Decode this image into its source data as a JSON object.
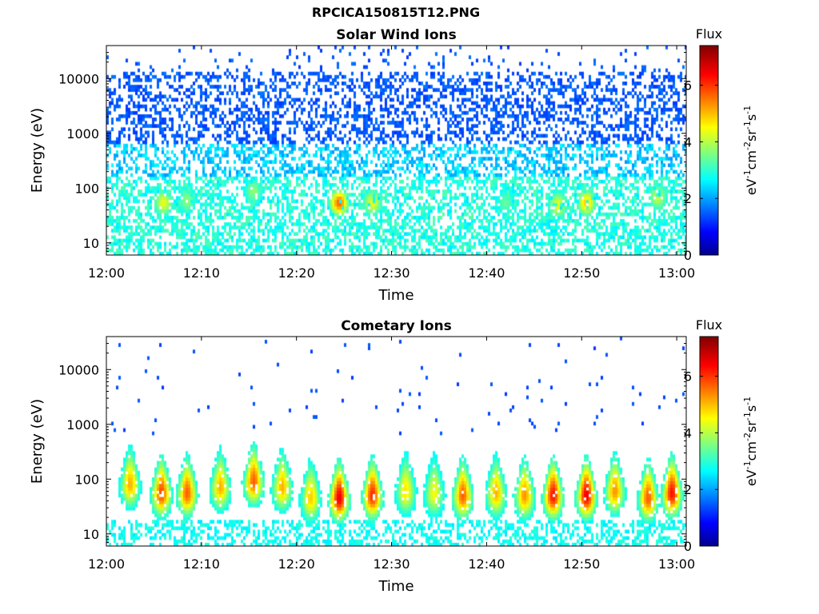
{
  "page_title": "RPCICA150815T12.PNG",
  "chart_data": [
    {
      "type": "heatmap",
      "title": "Solar Wind Ions",
      "xlabel": "Time",
      "ylabel": "Energy (eV)",
      "x_ticks": [
        "12:00",
        "12:10",
        "12:20",
        "12:30",
        "12:40",
        "12:50",
        "13:00"
      ],
      "x_tick_minutes": [
        0,
        10,
        20,
        30,
        40,
        50,
        60
      ],
      "xlim_minutes": [
        0,
        61
      ],
      "y_scale": "log",
      "y_ticks": [
        10,
        100,
        1000,
        10000
      ],
      "y_tick_labels": [
        "10",
        "100",
        "1000",
        "10000"
      ],
      "ylim": [
        6,
        40000
      ],
      "colorbar": {
        "label": "Flux",
        "units_base": "eV",
        "units_parts": [
          "-1",
          "cm",
          "-2",
          "sr",
          "-1",
          "s",
          "-1"
        ],
        "ticks": [
          "0",
          "2",
          "4",
          "6"
        ],
        "range": [
          0,
          7.4
        ]
      },
      "background_level": 2.2,
      "hotspots": [
        {
          "t": 6,
          "energy": 55,
          "level": 4.5
        },
        {
          "t": 8.5,
          "energy": 60,
          "level": 3.8
        },
        {
          "t": 15.5,
          "energy": 90,
          "level": 3.8
        },
        {
          "t": 24.5,
          "energy": 55,
          "level": 5.8
        },
        {
          "t": 28,
          "energy": 55,
          "level": 4.5
        },
        {
          "t": 42,
          "energy": 55,
          "level": 3.5
        },
        {
          "t": 47.5,
          "energy": 50,
          "level": 4.5
        },
        {
          "t": 50.5,
          "energy": 55,
          "level": 5.0
        },
        {
          "t": 58,
          "energy": 70,
          "level": 4.2
        }
      ]
    },
    {
      "type": "heatmap",
      "title": "Cometary Ions",
      "xlabel": "Time",
      "ylabel": "Energy (eV)",
      "x_ticks": [
        "12:00",
        "12:10",
        "12:20",
        "12:30",
        "12:40",
        "12:50",
        "13:00"
      ],
      "x_tick_minutes": [
        0,
        10,
        20,
        30,
        40,
        50,
        60
      ],
      "xlim_minutes": [
        0,
        61
      ],
      "y_scale": "log",
      "y_ticks": [
        10,
        100,
        1000,
        10000
      ],
      "y_tick_labels": [
        "10",
        "100",
        "1000",
        "10000"
      ],
      "ylim": [
        6,
        40000
      ],
      "colorbar": {
        "label": "Flux",
        "units_base": "eV",
        "units_parts": [
          "-1",
          "cm",
          "-2",
          "sr",
          "-1",
          "s",
          "-1"
        ],
        "ticks": [
          "0",
          "2",
          "4",
          "6"
        ],
        "range": [
          0,
          7.4
        ]
      },
      "bursts": [
        {
          "t": 2.5,
          "energy": 80,
          "level": 5.2
        },
        {
          "t": 5.8,
          "energy": 55,
          "level": 6.0
        },
        {
          "t": 8.5,
          "energy": 55,
          "level": 5.8
        },
        {
          "t": 12,
          "energy": 70,
          "level": 5.2
        },
        {
          "t": 15.5,
          "energy": 90,
          "level": 5.8
        },
        {
          "t": 18.5,
          "energy": 70,
          "level": 5.2
        },
        {
          "t": 21.5,
          "energy": 45,
          "level": 5.0
        },
        {
          "t": 24.5,
          "energy": 45,
          "level": 6.6
        },
        {
          "t": 28,
          "energy": 50,
          "level": 6.2
        },
        {
          "t": 31.5,
          "energy": 60,
          "level": 4.8
        },
        {
          "t": 34.5,
          "energy": 55,
          "level": 4.6
        },
        {
          "t": 37.5,
          "energy": 50,
          "level": 5.8
        },
        {
          "t": 41,
          "energy": 55,
          "level": 5.2
        },
        {
          "t": 44,
          "energy": 50,
          "level": 5.4
        },
        {
          "t": 47,
          "energy": 50,
          "level": 6.4
        },
        {
          "t": 50.5,
          "energy": 50,
          "level": 6.6
        },
        {
          "t": 53.5,
          "energy": 60,
          "level": 5.4
        },
        {
          "t": 57,
          "energy": 45,
          "level": 5.8
        },
        {
          "t": 59.5,
          "energy": 55,
          "level": 6.4
        }
      ]
    }
  ]
}
